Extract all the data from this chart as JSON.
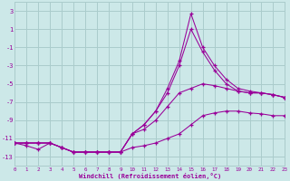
{
  "background_color": "#cce8e8",
  "grid_color": "#aacccc",
  "line_color": "#990099",
  "xlabel": "Windchill (Refroidissement éolien,°C)",
  "xlim": [
    0,
    23
  ],
  "ylim": [
    -14,
    4
  ],
  "xticks": [
    0,
    1,
    2,
    3,
    4,
    5,
    6,
    7,
    8,
    9,
    10,
    11,
    12,
    13,
    14,
    15,
    16,
    17,
    18,
    19,
    20,
    21,
    22,
    23
  ],
  "yticks": [
    3,
    1,
    -1,
    -3,
    -5,
    -7,
    -9,
    -11,
    -13
  ],
  "line1_y": [
    -11.5,
    -11.5,
    -11.5,
    -11.5,
    -12.0,
    -12.5,
    -12.5,
    -12.5,
    -12.5,
    -12.5,
    -12.0,
    -11.8,
    -11.5,
    -11.0,
    -10.5,
    -9.5,
    -8.5,
    -8.2,
    -8.0,
    -8.0,
    -8.2,
    -8.3,
    -8.5,
    -8.5
  ],
  "line2_y": [
    -11.5,
    -11.5,
    -11.5,
    -11.5,
    -12.0,
    -12.5,
    -12.5,
    -12.5,
    -12.5,
    -12.5,
    -10.5,
    -9.5,
    -8.0,
    -6.0,
    -3.0,
    1.0,
    -1.5,
    -3.5,
    -5.0,
    -5.8,
    -6.0,
    -6.0,
    -6.2,
    -6.5
  ],
  "line3_y": [
    -11.5,
    -11.5,
    -11.5,
    -11.5,
    -12.0,
    -12.5,
    -12.5,
    -12.5,
    -12.5,
    -12.5,
    -10.5,
    -9.5,
    -8.0,
    -5.5,
    -2.5,
    2.7,
    -1.0,
    -3.0,
    -4.5,
    -5.5,
    -5.8,
    -6.0,
    -6.2,
    -6.5
  ],
  "line4_y": [
    -11.5,
    -11.8,
    -12.2,
    -11.5,
    -12.0,
    -12.5,
    -12.5,
    -12.5,
    -12.5,
    -12.5,
    -10.5,
    -10.0,
    -9.0,
    -7.5,
    -6.0,
    -5.5,
    -5.0,
    -5.2,
    -5.5,
    -5.8,
    -6.0,
    -6.0,
    -6.2,
    -6.5
  ]
}
